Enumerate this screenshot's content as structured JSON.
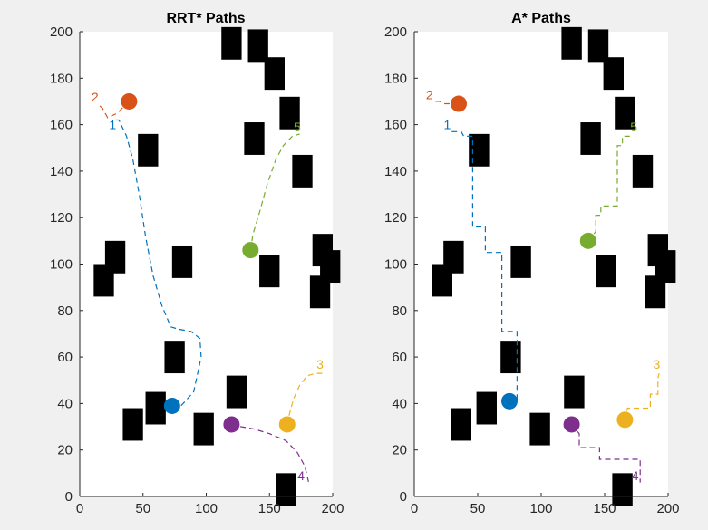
{
  "chart_data": [
    {
      "type": "scatter",
      "title": "RRT* Paths",
      "xlim": [
        0,
        200
      ],
      "ylim": [
        0,
        200
      ],
      "xticks": [
        "0",
        "50",
        "100",
        "150",
        "200"
      ],
      "yticks": [
        "0",
        "20",
        "40",
        "60",
        "80",
        "100",
        "120",
        "140",
        "160",
        "180",
        "200"
      ],
      "obstacles": [
        [
          120,
          195
        ],
        [
          141,
          194
        ],
        [
          154,
          182
        ],
        [
          166,
          165
        ],
        [
          138,
          154
        ],
        [
          54,
          149
        ],
        [
          176,
          140
        ],
        [
          28,
          103
        ],
        [
          81,
          101
        ],
        [
          19,
          93
        ],
        [
          150,
          97
        ],
        [
          192,
          106
        ],
        [
          198,
          99
        ],
        [
          190,
          88
        ],
        [
          75,
          60
        ],
        [
          124,
          45
        ],
        [
          60,
          38
        ],
        [
          42,
          31
        ],
        [
          98,
          29
        ],
        [
          163,
          3
        ]
      ],
      "series": [
        {
          "label": "1",
          "color": "#0072bd",
          "start": [
            73,
            39
          ],
          "label_pos": [
            26,
            160
          ],
          "path": [
            [
              73,
              39
            ],
            [
              80,
              39
            ],
            [
              90,
              45
            ],
            [
              96,
              60
            ],
            [
              95,
              68
            ],
            [
              88,
              71
            ],
            [
              78,
              72
            ],
            [
              72,
              73
            ],
            [
              65,
              82
            ],
            [
              58,
              95
            ],
            [
              52,
              112
            ],
            [
              47,
              130
            ],
            [
              42,
              145
            ],
            [
              37,
              155
            ],
            [
              31,
              162
            ],
            [
              26,
              162
            ]
          ]
        },
        {
          "label": "2",
          "color": "#d95319",
          "start": [
            39,
            170
          ],
          "label_pos": [
            12,
            172
          ],
          "path": [
            [
              39,
              170
            ],
            [
              35,
              168
            ],
            [
              30,
              165
            ],
            [
              22,
              163
            ],
            [
              18,
              167
            ],
            [
              14,
              169
            ]
          ]
        },
        {
          "label": "3",
          "color": "#edb120",
          "start": [
            164,
            31
          ],
          "label_pos": [
            190,
            57
          ],
          "path": [
            [
              164,
              31
            ],
            [
              166,
              36
            ],
            [
              169,
              42
            ],
            [
              174,
              48
            ],
            [
              180,
              52
            ],
            [
              187,
              53
            ],
            [
              193,
              53
            ]
          ]
        },
        {
          "label": "4",
          "color": "#7e2f8e",
          "start": [
            120,
            31
          ],
          "label_pos": [
            175,
            9
          ],
          "path": [
            [
              120,
              31
            ],
            [
              128,
              30
            ],
            [
              138,
              29
            ],
            [
              150,
              27
            ],
            [
              163,
              24
            ],
            [
              172,
              19
            ],
            [
              178,
              13
            ],
            [
              181,
              6
            ]
          ]
        },
        {
          "label": "5",
          "color": "#77ac30",
          "start": [
            135,
            106
          ],
          "label_pos": [
            172,
            159
          ],
          "path": [
            [
              135,
              106
            ],
            [
              137,
              113
            ],
            [
              142,
              122
            ],
            [
              148,
              134
            ],
            [
              155,
              145
            ],
            [
              161,
              151
            ],
            [
              168,
              155
            ],
            [
              174,
              156
            ]
          ]
        }
      ]
    },
    {
      "type": "scatter",
      "title": "A* Paths",
      "xlim": [
        0,
        200
      ],
      "ylim": [
        0,
        200
      ],
      "xticks": [
        "0",
        "50",
        "100",
        "150",
        "200"
      ],
      "yticks": [
        "0",
        "20",
        "40",
        "60",
        "80",
        "100",
        "120",
        "140",
        "160",
        "180",
        "200"
      ],
      "obstacles": [
        [
          124,
          195
        ],
        [
          145,
          194
        ],
        [
          157,
          182
        ],
        [
          166,
          165
        ],
        [
          139,
          154
        ],
        [
          51,
          149
        ],
        [
          180,
          140
        ],
        [
          31,
          103
        ],
        [
          84,
          101
        ],
        [
          22,
          93
        ],
        [
          151,
          97
        ],
        [
          192,
          106
        ],
        [
          198,
          99
        ],
        [
          190,
          88
        ],
        [
          76,
          60
        ],
        [
          126,
          45
        ],
        [
          57,
          38
        ],
        [
          37,
          31
        ],
        [
          99,
          29
        ],
        [
          164,
          3
        ]
      ],
      "series": [
        {
          "label": "1",
          "color": "#0072bd",
          "start": [
            75,
            41
          ],
          "label_pos": [
            26,
            160
          ],
          "path": [
            [
              75,
              41
            ],
            [
              81,
              41
            ],
            [
              81,
              71
            ],
            [
              75,
              71
            ],
            [
              69,
              71
            ],
            [
              69,
              105
            ],
            [
              56,
              105
            ],
            [
              56,
              116
            ],
            [
              46,
              116
            ],
            [
              46,
              155
            ],
            [
              39,
              155
            ],
            [
              37,
              157
            ],
            [
              33,
              157
            ],
            [
              29,
              157
            ]
          ]
        },
        {
          "label": "2",
          "color": "#d95319",
          "start": [
            35,
            169
          ],
          "label_pos": [
            12,
            173
          ],
          "path": [
            [
              35,
              169
            ],
            [
              28,
              169
            ],
            [
              24,
              169
            ],
            [
              20,
              170
            ],
            [
              17,
              170
            ],
            [
              15,
              171
            ]
          ]
        },
        {
          "label": "3",
          "color": "#edb120",
          "start": [
            166,
            33
          ],
          "label_pos": [
            191,
            57
          ],
          "path": [
            [
              166,
              33
            ],
            [
              168,
              38
            ],
            [
              180,
              38
            ],
            [
              186,
              38
            ],
            [
              186,
              44
            ],
            [
              192,
              44
            ],
            [
              192,
              51
            ],
            [
              193,
              53
            ]
          ]
        },
        {
          "label": "4",
          "color": "#7e2f8e",
          "start": [
            124,
            31
          ],
          "label_pos": [
            174,
            9
          ],
          "path": [
            [
              124,
              31
            ],
            [
              130,
              27
            ],
            [
              130,
              21
            ],
            [
              146,
              21
            ],
            [
              146,
              16
            ],
            [
              168,
              16
            ],
            [
              178,
              16
            ],
            [
              178,
              6
            ]
          ]
        },
        {
          "label": "5",
          "color": "#77ac30",
          "start": [
            137,
            110
          ],
          "label_pos": [
            173,
            159
          ],
          "path": [
            [
              137,
              110
            ],
            [
              143,
              114
            ],
            [
              143,
              121
            ],
            [
              147,
              121
            ],
            [
              147,
              125
            ],
            [
              160,
              125
            ],
            [
              160,
              151
            ],
            [
              164,
              151
            ],
            [
              164,
              155
            ],
            [
              170,
              155
            ]
          ]
        }
      ]
    }
  ]
}
